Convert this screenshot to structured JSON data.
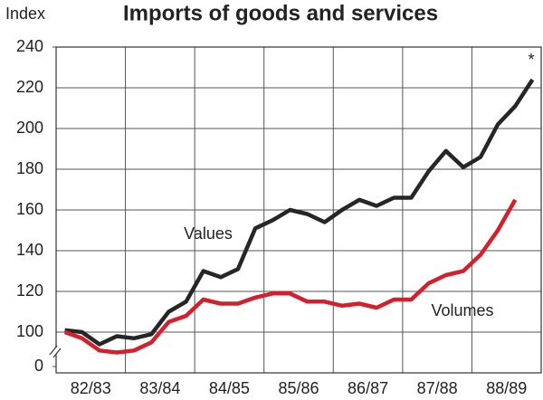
{
  "chart_data": {
    "type": "line",
    "title": "Imports of goods and services",
    "y_label": "Index",
    "categories": [
      null,
      null,
      "82/83",
      null,
      null,
      null,
      "83/84",
      null,
      null,
      null,
      "84/85",
      null,
      null,
      null,
      "85/86",
      null,
      null,
      null,
      "86/87",
      null,
      null,
      null,
      "87/88",
      null,
      null,
      null,
      "88/89",
      null
    ],
    "series": [
      {
        "name": "Values",
        "color": "#262626",
        "values": [
          101,
          100,
          94,
          98,
          97,
          99,
          110,
          115,
          130,
          127,
          131,
          151,
          155,
          160,
          158,
          154,
          160,
          165,
          162,
          166,
          166,
          179,
          189,
          181,
          186,
          202,
          211,
          224
        ]
      },
      {
        "name": "Volumes",
        "color": "#d4202c",
        "values": [
          100,
          97,
          91,
          90,
          91,
          95,
          105,
          108,
          116,
          114,
          114,
          117,
          119,
          119,
          115,
          115,
          113,
          114,
          112,
          116,
          116,
          124,
          128,
          130,
          138,
          150,
          165,
          null
        ]
      }
    ],
    "annotations": [
      "*"
    ],
    "ylim": [
      80,
      240
    ],
    "yticks": [
      0,
      100,
      120,
      140,
      160,
      180,
      200,
      220,
      240
    ],
    "axis_break": true,
    "grid": true
  }
}
